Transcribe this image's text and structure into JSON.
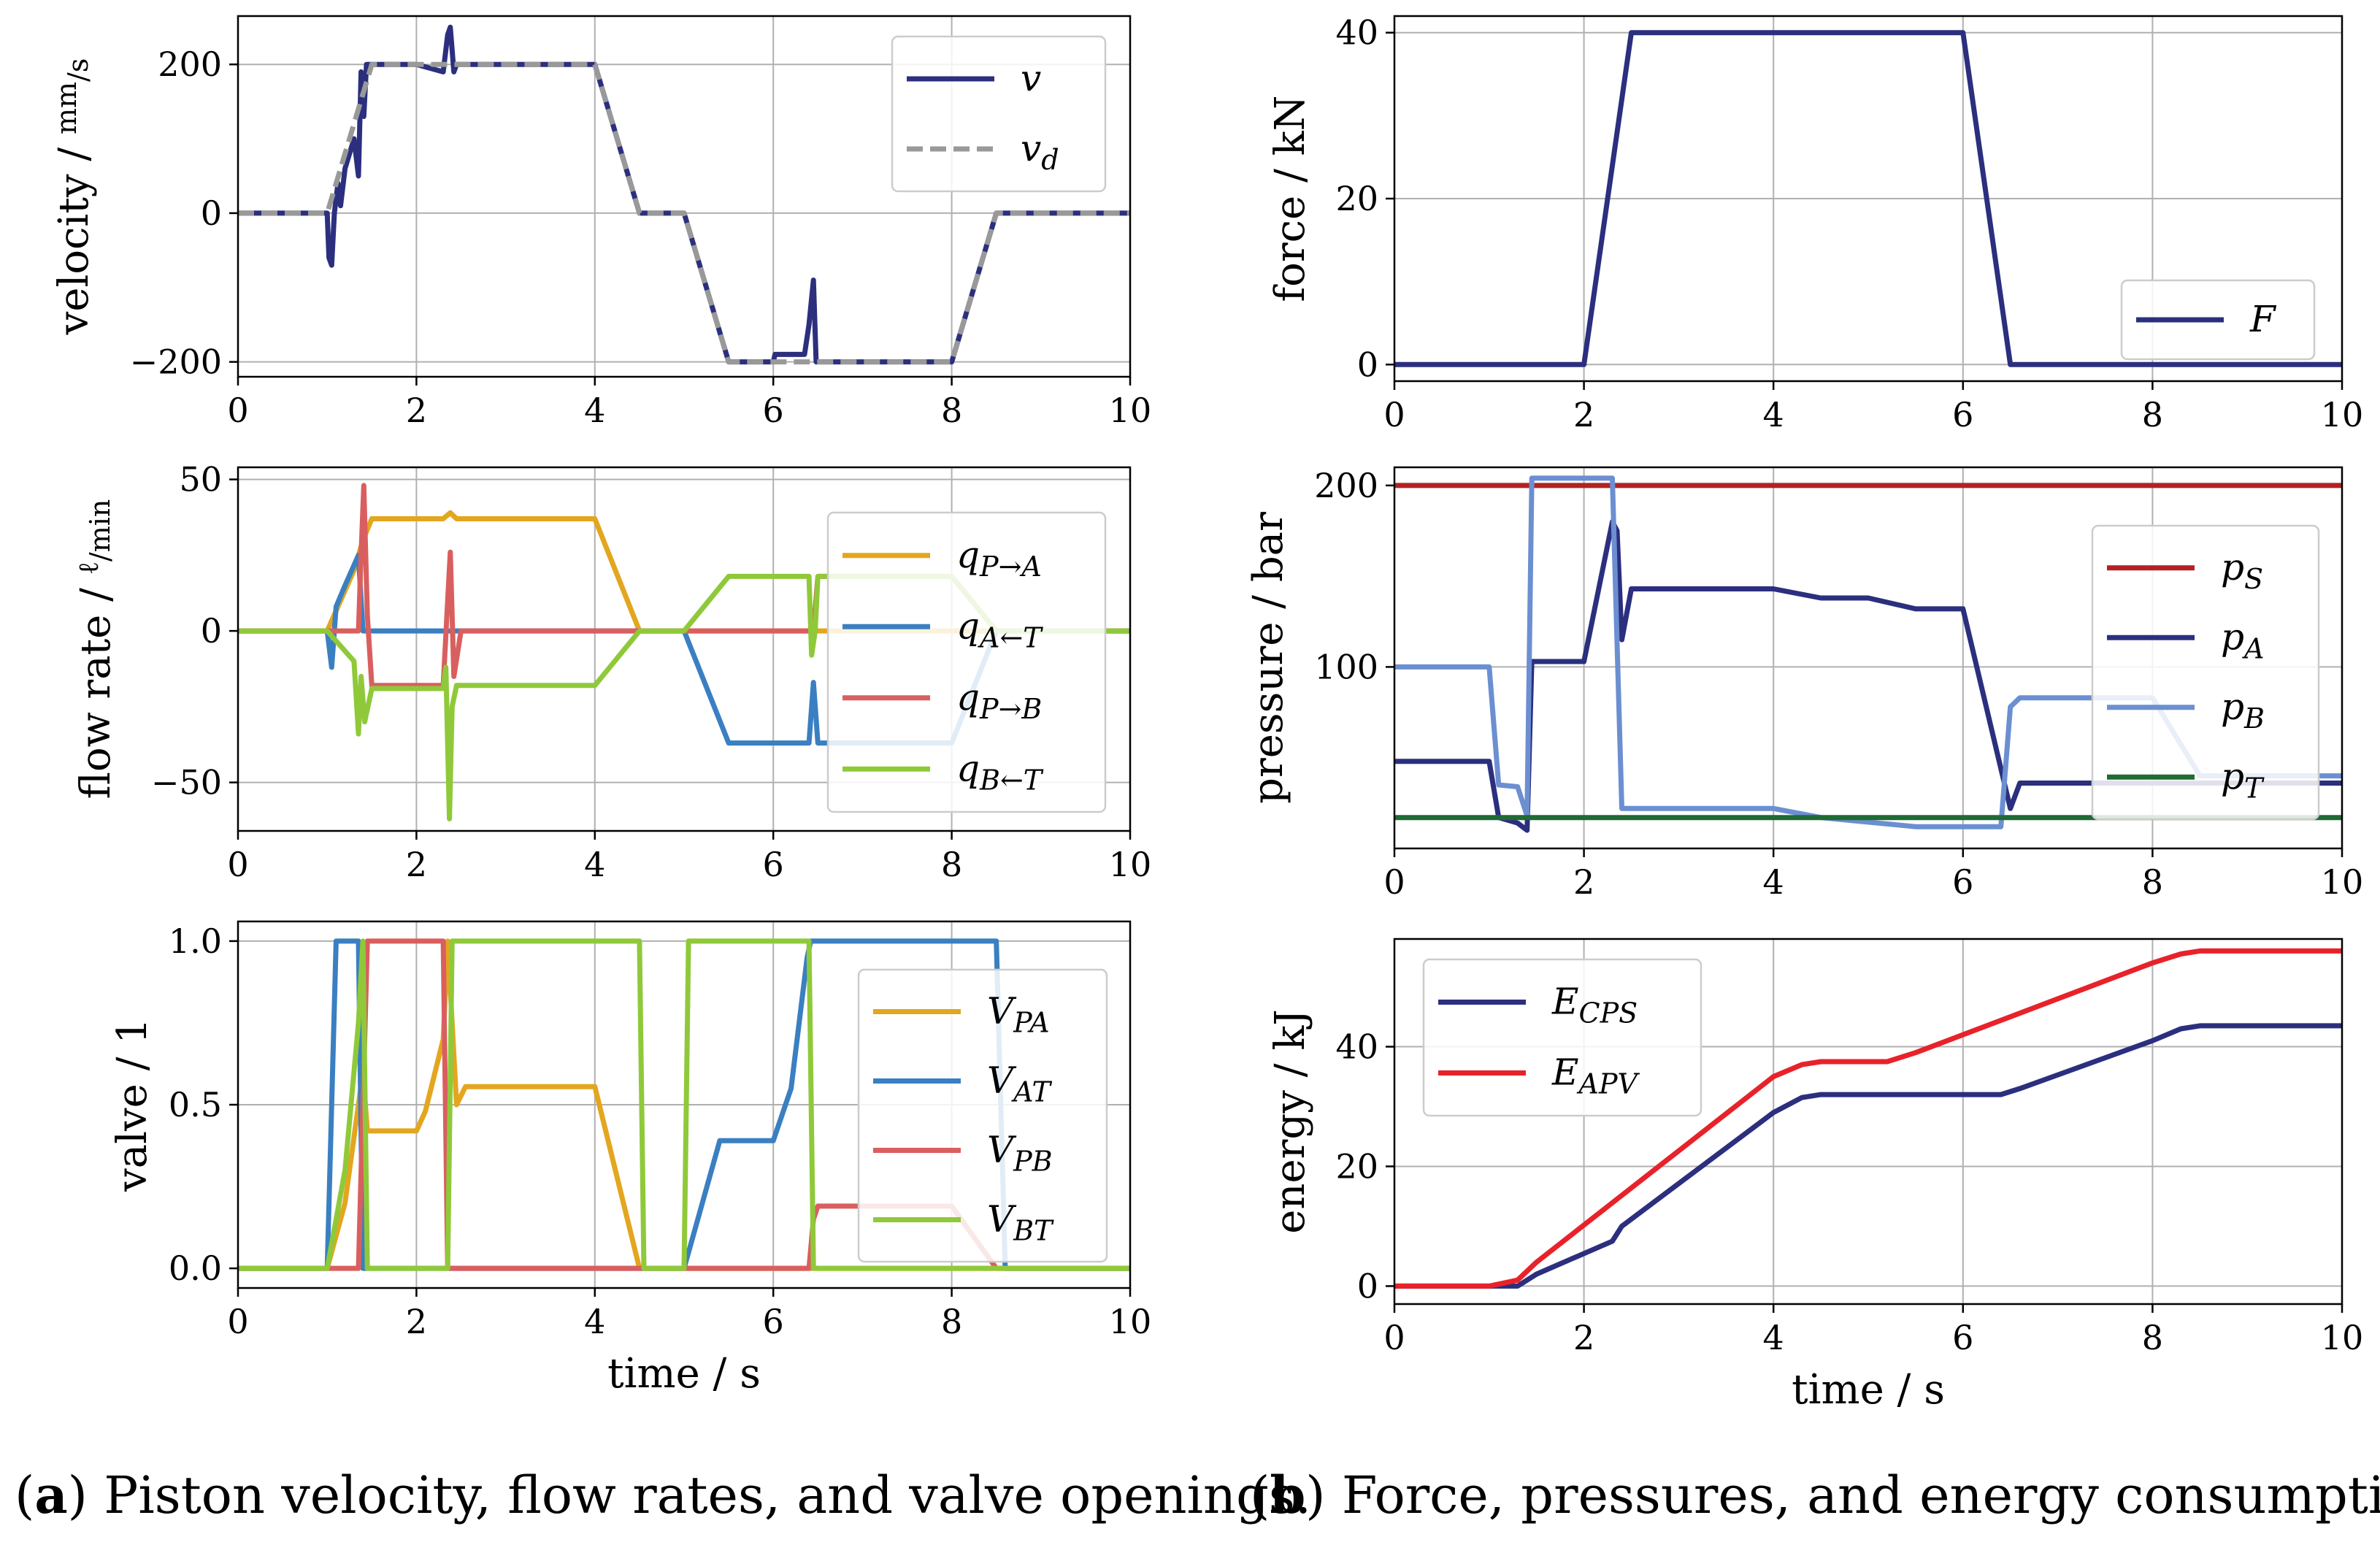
{
  "chart_data": [
    {
      "id": "velocity",
      "type": "line",
      "ylabel": "velocity / mm/s",
      "ylabel_text": "velocity /",
      "ylabel_unit_num": "mm",
      "ylabel_unit_den": "s",
      "xlabel": "",
      "xlim": [
        0,
        10
      ],
      "ylim": [
        -220,
        265
      ],
      "xticks": [
        0,
        2,
        4,
        6,
        8,
        10
      ],
      "yticks": [
        -200,
        0,
        200
      ],
      "ytick_labels": [
        "−200",
        "0",
        "200"
      ],
      "legend_position": "top-right",
      "series": [
        {
          "name": "v",
          "label": "v",
          "sub": "",
          "color": "#2b2f7e",
          "dash": "solid",
          "x": [
            0,
            1.0,
            1.02,
            1.05,
            1.08,
            1.12,
            1.15,
            1.2,
            1.3,
            1.35,
            1.38,
            1.41,
            1.44,
            1.5,
            2.0,
            2.3,
            2.35,
            2.38,
            2.42,
            2.45,
            2.5,
            4.0,
            4.5,
            5.0,
            5.5,
            6.0,
            6.02,
            6.35,
            6.4,
            6.45,
            6.48,
            6.52,
            6.6,
            8.0,
            8.5,
            10
          ],
          "y": [
            0,
            0,
            -60,
            -70,
            0,
            40,
            10,
            60,
            100,
            50,
            190,
            130,
            200,
            200,
            200,
            190,
            240,
            250,
            190,
            200,
            200,
            200,
            0,
            0,
            -200,
            -200,
            -190,
            -190,
            -150,
            -90,
            -200,
            -200,
            -200,
            -200,
            0,
            0
          ]
        },
        {
          "name": "v_d",
          "label": "v",
          "sub": "d",
          "color": "#999999",
          "dash": "dashed",
          "x": [
            0,
            1.0,
            1.5,
            4.0,
            4.5,
            5.0,
            5.5,
            8.0,
            8.5,
            10
          ],
          "y": [
            0,
            0,
            200,
            200,
            0,
            0,
            -200,
            -200,
            0,
            0
          ]
        }
      ]
    },
    {
      "id": "flow",
      "type": "line",
      "ylabel": "flow rate / ℓ/min",
      "ylabel_text": "flow rate /",
      "ylabel_unit_num": "ℓ",
      "ylabel_unit_den": "min",
      "xlabel": "",
      "xlim": [
        0,
        10
      ],
      "ylim": [
        -66,
        54
      ],
      "xticks": [
        0,
        2,
        4,
        6,
        8,
        10
      ],
      "yticks": [
        -50,
        0,
        50
      ],
      "ytick_labels": [
        "−50",
        "0",
        "50"
      ],
      "legend_position": "right",
      "series": [
        {
          "name": "q_P→A",
          "label": "q",
          "sub": "P→A",
          "color": "#e3a61f",
          "dash": "solid",
          "x": [
            0,
            1.0,
            1.3,
            1.4,
            1.5,
            2.3,
            2.38,
            2.45,
            4.0,
            4.5,
            10
          ],
          "y": [
            0,
            0,
            20,
            30,
            37,
            37,
            39,
            37,
            37,
            0,
            0
          ]
        },
        {
          "name": "q_A←T",
          "label": "q",
          "sub": "A←T",
          "color": "#3a7fc1",
          "dash": "solid",
          "x": [
            0,
            1.0,
            1.05,
            1.1,
            1.2,
            1.35,
            1.4,
            5.0,
            5.5,
            6.4,
            6.45,
            6.5,
            6.6,
            8.0,
            8.5,
            10
          ],
          "y": [
            0,
            0,
            -12,
            8,
            15,
            25,
            0,
            0,
            -37,
            -37,
            -17,
            -37,
            -37,
            -37,
            0,
            0
          ]
        },
        {
          "name": "q_P→B",
          "label": "q",
          "sub": "P→B",
          "color": "#d95f5f",
          "dash": "solid",
          "x": [
            0,
            1.35,
            1.38,
            1.41,
            1.45,
            1.5,
            2.3,
            2.35,
            2.38,
            2.42,
            2.5,
            6.45,
            6.5,
            8.0,
            8.5,
            10
          ],
          "y": [
            0,
            0,
            25,
            48,
            5,
            -18,
            -18,
            10,
            26,
            -15,
            0,
            0,
            18,
            18,
            0,
            0
          ]
        },
        {
          "name": "q_B←T",
          "label": "q",
          "sub": "B←T",
          "color": "#8fc93a",
          "dash": "solid",
          "x": [
            0,
            1.0,
            1.3,
            1.35,
            1.38,
            1.42,
            1.5,
            2.3,
            2.33,
            2.37,
            2.4,
            2.45,
            4.0,
            4.5,
            5.0,
            5.5,
            6.4,
            6.43,
            6.47,
            6.5,
            8.0,
            8.5,
            10
          ],
          "y": [
            0,
            0,
            -10,
            -34,
            -15,
            -30,
            -19,
            -19,
            -12,
            -62,
            -25,
            -18,
            -18,
            0,
            0,
            18,
            18,
            -8,
            0,
            18,
            18,
            0,
            0
          ]
        }
      ]
    },
    {
      "id": "valve",
      "type": "line",
      "ylabel": "valve / 1",
      "xlabel": "time / s",
      "xlim": [
        0,
        10
      ],
      "ylim": [
        -0.06,
        1.06
      ],
      "xticks": [
        0,
        2,
        4,
        6,
        8,
        10
      ],
      "yticks": [
        0,
        0.5,
        1.0
      ],
      "ytick_labels": [
        "0.0",
        "0.5",
        "1.0"
      ],
      "legend_position": "right",
      "series": [
        {
          "name": "V_PA",
          "label": "V",
          "sub": "PA",
          "color": "#e3a61f",
          "dash": "solid",
          "x": [
            0,
            1.0,
            1.2,
            1.4,
            1.45,
            2.0,
            2.1,
            2.3,
            2.35,
            2.45,
            2.55,
            4.0,
            4.5,
            10
          ],
          "y": [
            0,
            0,
            0.2,
            0.6,
            0.42,
            0.42,
            0.48,
            0.7,
            1.0,
            0.5,
            0.555,
            0.555,
            0,
            0
          ]
        },
        {
          "name": "V_AT",
          "label": "V",
          "sub": "AT",
          "color": "#3a7fc1",
          "dash": "solid",
          "x": [
            0,
            1.0,
            1.1,
            1.35,
            1.4,
            5.0,
            5.4,
            6.0,
            6.2,
            6.38,
            6.42,
            8.5,
            8.6,
            10
          ],
          "y": [
            0,
            0,
            1.0,
            1.0,
            0,
            0,
            0.39,
            0.39,
            0.55,
            0.95,
            1.0,
            1.0,
            0,
            0
          ]
        },
        {
          "name": "V_PB",
          "label": "V",
          "sub": "PB",
          "color": "#d95f5f",
          "dash": "solid",
          "x": [
            0,
            1.35,
            1.45,
            2.3,
            2.35,
            6.4,
            6.45,
            6.5,
            8.0,
            8.5,
            10
          ],
          "y": [
            0,
            0,
            1.0,
            1.0,
            0,
            0,
            0.15,
            0.19,
            0.19,
            0,
            0
          ]
        },
        {
          "name": "V_BT",
          "label": "V",
          "sub": "BT",
          "color": "#8fc93a",
          "dash": "solid",
          "x": [
            0,
            1.0,
            1.2,
            1.35,
            1.4,
            1.45,
            2.35,
            2.4,
            4.5,
            4.55,
            5.0,
            5.05,
            6.4,
            6.45,
            10
          ],
          "y": [
            0,
            0,
            0.3,
            0.75,
            1.0,
            0,
            0,
            1.0,
            1.0,
            0,
            0,
            1.0,
            1.0,
            0,
            0
          ]
        }
      ]
    },
    {
      "id": "force",
      "type": "line",
      "ylabel": "force / kN",
      "xlabel": "",
      "xlim": [
        0,
        10
      ],
      "ylim": [
        -2,
        42
      ],
      "xticks": [
        0,
        2,
        4,
        6,
        8,
        10
      ],
      "yticks": [
        0,
        20,
        40
      ],
      "ytick_labels": [
        "0",
        "20",
        "40"
      ],
      "legend_position": "bottom-right",
      "series": [
        {
          "name": "F",
          "label": "F",
          "sub": "",
          "color": "#2b2f7e",
          "dash": "solid",
          "x": [
            0,
            2.0,
            2.5,
            6.0,
            6.5,
            10
          ],
          "y": [
            0,
            0,
            40,
            40,
            0,
            0
          ]
        }
      ]
    },
    {
      "id": "pressure",
      "type": "line",
      "ylabel": "pressure / bar",
      "xlabel": "",
      "xlim": [
        0,
        10
      ],
      "ylim": [
        0,
        210
      ],
      "xticks": [
        0,
        2,
        4,
        6,
        8,
        10
      ],
      "yticks": [
        100,
        200
      ],
      "ytick_labels": [
        "100",
        "200"
      ],
      "legend_position": "right",
      "series": [
        {
          "name": "p_S",
          "label": "p",
          "sub": "S",
          "color": "#b22222",
          "dash": "solid",
          "x": [
            0,
            10
          ],
          "y": [
            200,
            200
          ]
        },
        {
          "name": "p_A",
          "label": "p",
          "sub": "A",
          "color": "#2b2f7e",
          "dash": "solid",
          "x": [
            0,
            1.0,
            1.1,
            1.3,
            1.4,
            1.45,
            2.0,
            2.3,
            2.35,
            2.4,
            2.5,
            4.0,
            4.5,
            5.0,
            5.5,
            6.0,
            6.5,
            6.6,
            8.0,
            8.5,
            10
          ],
          "y": [
            48,
            48,
            17,
            14,
            10,
            103,
            103,
            180,
            175,
            115,
            143,
            143,
            138,
            138,
            132,
            132,
            22,
            36,
            36,
            36,
            36
          ]
        },
        {
          "name": "p_B",
          "label": "p",
          "sub": "B",
          "color": "#6b8fd1",
          "dash": "solid",
          "x": [
            0,
            1.0,
            1.1,
            1.3,
            1.4,
            1.45,
            2.3,
            2.4,
            4.0,
            4.5,
            5.5,
            6.0,
            6.4,
            6.5,
            6.6,
            8.0,
            8.5,
            10
          ],
          "y": [
            100,
            100,
            35,
            34,
            18,
            204,
            204,
            22,
            22,
            17,
            12,
            12,
            12,
            78,
            83,
            83,
            40,
            40
          ]
        },
        {
          "name": "p_T",
          "label": "p",
          "sub": "T",
          "color": "#1e6b34",
          "dash": "solid",
          "x": [
            0,
            10
          ],
          "y": [
            17,
            17
          ]
        }
      ]
    },
    {
      "id": "energy",
      "type": "line",
      "ylabel": "energy / kJ",
      "xlabel": "time / s",
      "xlim": [
        0,
        10
      ],
      "ylim": [
        -3,
        58
      ],
      "xticks": [
        0,
        2,
        4,
        6,
        8,
        10
      ],
      "yticks": [
        0,
        20,
        40
      ],
      "ytick_labels": [
        "0",
        "20",
        "40"
      ],
      "legend_position": "top-left",
      "series": [
        {
          "name": "E_CPS",
          "label": "E",
          "sub": "CPS",
          "color": "#2b2f7e",
          "dash": "solid",
          "x": [
            0,
            1.3,
            1.5,
            2.3,
            2.4,
            4.0,
            4.3,
            4.5,
            6.4,
            6.6,
            8.0,
            8.3,
            8.5,
            10
          ],
          "y": [
            0,
            0,
            2,
            7.5,
            10,
            29,
            31.5,
            32,
            32,
            33,
            41,
            43,
            43.5,
            43.5
          ]
        },
        {
          "name": "E_APV",
          "label": "E",
          "sub": "APV",
          "color": "#e8222a",
          "dash": "solid",
          "x": [
            0,
            1.0,
            1.3,
            1.5,
            4.0,
            4.3,
            4.5,
            5.2,
            5.5,
            8.0,
            8.3,
            8.5,
            10
          ],
          "y": [
            0,
            0,
            1,
            4,
            35,
            37,
            37.5,
            37.5,
            39,
            54,
            55.5,
            56,
            56
          ]
        }
      ]
    }
  ],
  "captions": {
    "a_label": "(a)",
    "a_bold": "a",
    "a_text": "Piston velocity, flow rates, and valve openings.",
    "b_label": "(b)",
    "b_bold": "b",
    "b_text": "Force, pressures, and energy consumption."
  }
}
